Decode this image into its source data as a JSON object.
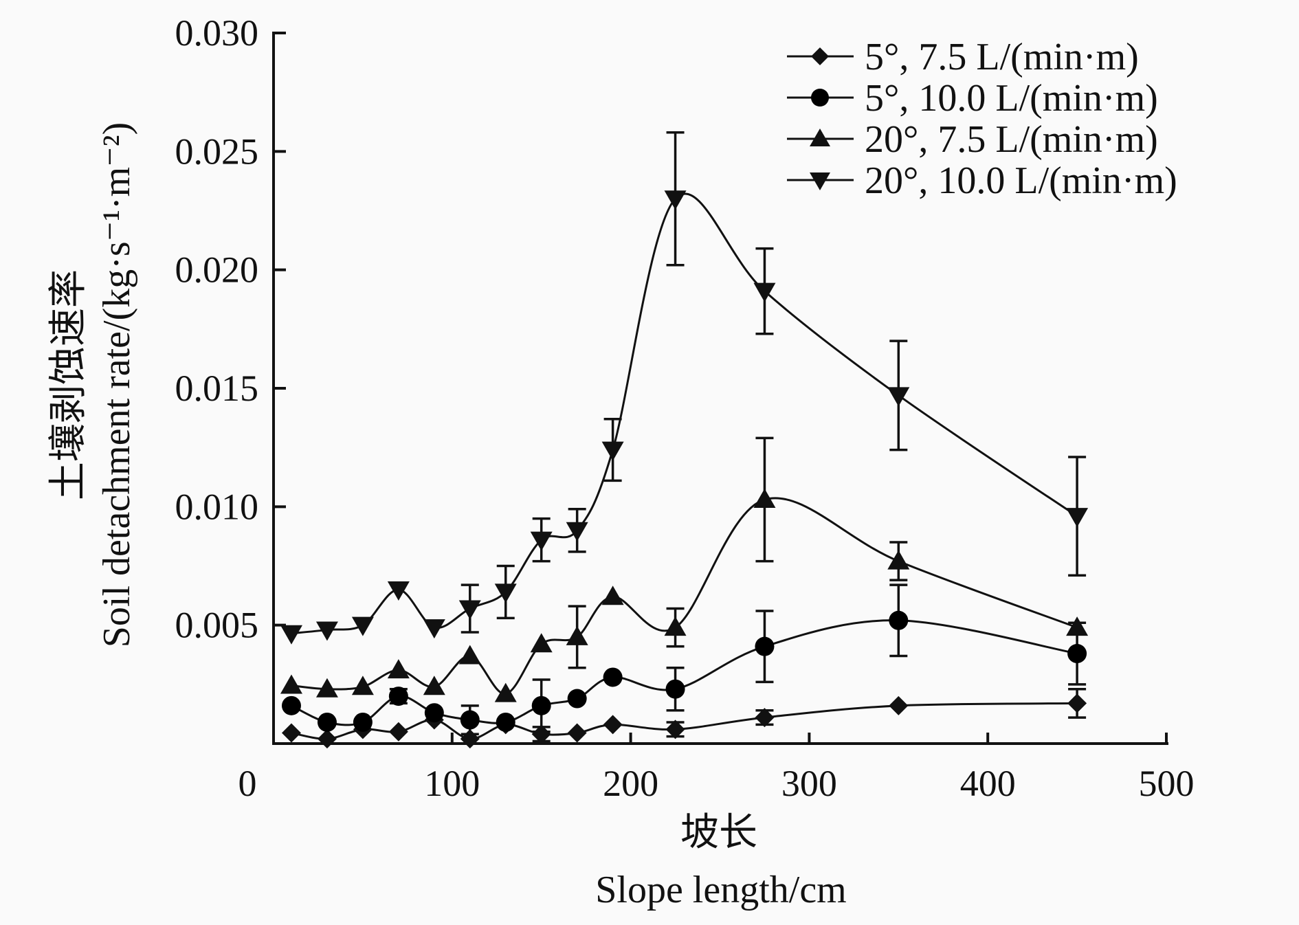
{
  "chart_data": {
    "type": "line",
    "title": "",
    "xlabel_cn": "坡长",
    "xlabel": "Slope length/cm",
    "ylabel_cn": "土壤剥蚀速率",
    "ylabel": "Soil detachment rate/(kg·s⁻¹·m⁻²)",
    "xlim": [
      0,
      500
    ],
    "ylim": [
      0,
      0.03
    ],
    "xticks": [
      "0",
      "100",
      "200",
      "300",
      "400",
      "500"
    ],
    "xtick_values": [
      0,
      100,
      200,
      300,
      400,
      500
    ],
    "yticks": [
      "0.005",
      "0.010",
      "0.015",
      "0.020",
      "0.025",
      "0.030"
    ],
    "ytick_values": [
      0.005,
      0.01,
      0.015,
      0.02,
      0.025,
      0.03
    ],
    "grid": false,
    "legend_position": "top-right",
    "x": [
      10,
      30,
      50,
      70,
      90,
      110,
      130,
      150,
      170,
      190,
      225,
      275,
      350,
      450
    ],
    "series": [
      {
        "name": "5°, 7.5 L/(min·m)",
        "marker": "diamond",
        "values": [
          0.00045,
          0.0002,
          0.0006,
          0.0005,
          0.001,
          0.0002,
          0.0008,
          0.0004,
          0.00045,
          0.0008,
          0.0006,
          0.0011,
          0.0016,
          0.0017
        ],
        "errors": [
          0,
          0,
          0,
          0,
          0,
          0,
          0,
          0.0003,
          0,
          0,
          0.0003,
          0.0003,
          0,
          0.0006
        ]
      },
      {
        "name": "5°, 10.0 L/(min·m)",
        "marker": "circle",
        "values": [
          0.0016,
          0.0009,
          0.0009,
          0.002,
          0.0013,
          0.001,
          0.0009,
          0.0016,
          0.0019,
          0.0028,
          0.0023,
          0.0041,
          0.0052,
          0.0038
        ],
        "errors": [
          0,
          0,
          0,
          0.0003,
          0,
          0.0006,
          0,
          0.0011,
          0,
          0,
          0.0009,
          0.0015,
          0.0015,
          0.0013
        ]
      },
      {
        "name": "20°, 7.5 L/(min·m)",
        "marker": "triangle-up",
        "values": [
          0.00245,
          0.0023,
          0.0024,
          0.0031,
          0.0024,
          0.0037,
          0.0021,
          0.0042,
          0.0045,
          0.0062,
          0.0049,
          0.0103,
          0.0077,
          0.0049
        ],
        "errors": [
          0,
          0,
          0,
          0,
          0,
          0,
          0,
          0,
          0.0013,
          0,
          0.0008,
          0.0026,
          0.0008,
          0
        ]
      },
      {
        "name": "20°, 10.0 L/(min·m)",
        "marker": "triangle-down",
        "values": [
          0.00465,
          0.0048,
          0.005,
          0.0065,
          0.0049,
          0.0057,
          0.0064,
          0.0086,
          0.009,
          0.0124,
          0.023,
          0.0191,
          0.0147,
          0.0096
        ],
        "errors": [
          0,
          0,
          0,
          0,
          0,
          0.001,
          0.0011,
          0.0009,
          0.0009,
          0.0013,
          0.0028,
          0.0018,
          0.0023,
          0.0025
        ]
      }
    ]
  }
}
